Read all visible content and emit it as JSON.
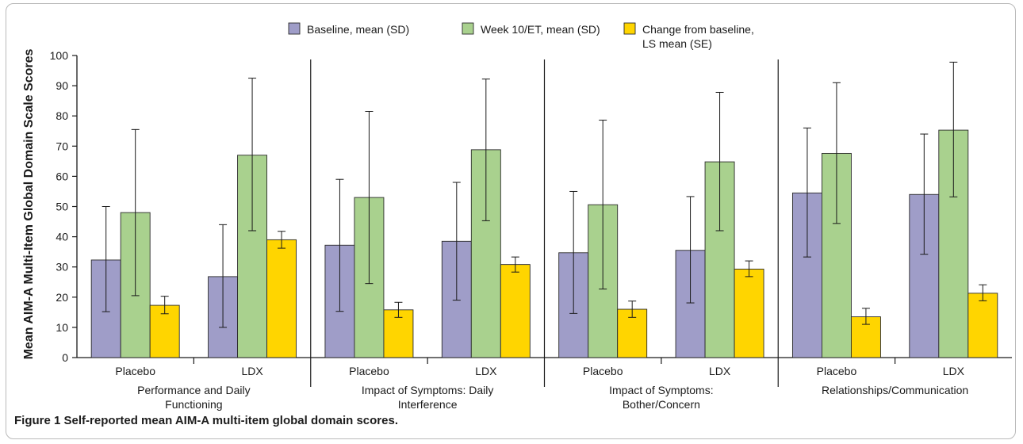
{
  "caption": {
    "label": "Figure 1",
    "text": "Self-reported mean AIM-A multi-item global domain scores."
  },
  "colors": {
    "baseline": "#9f9dc8",
    "week10": "#a9d18e",
    "change": "#ffd500",
    "axis": "#1a1a1a"
  },
  "chart_data": {
    "type": "bar",
    "title": "",
    "ylabel": "Mean AIM-A Multi-Item Global Domain Scale Scores",
    "xlabel": "",
    "ylim": [
      0,
      100
    ],
    "yticks": [
      0,
      10,
      20,
      30,
      40,
      50,
      60,
      70,
      80,
      90,
      100
    ],
    "grid": false,
    "legend_position": "top",
    "domains": [
      "Performance and Daily Functioning",
      "Impact of Symptoms: Daily Interference",
      "Impact of Symptoms: Bother/Concern",
      "Relationships/Communication"
    ],
    "domain_label_lines": [
      [
        "Performance and Daily",
        "Functioning"
      ],
      [
        "Impact of Symptoms: Daily",
        "Interference"
      ],
      [
        "Impact of Symptoms:",
        "Bother/Concern"
      ],
      [
        "Relationships/Communication"
      ]
    ],
    "categories": [
      "Placebo",
      "LDX",
      "Placebo",
      "LDX",
      "Placebo",
      "LDX",
      "Placebo",
      "LDX"
    ],
    "series": [
      {
        "name": "Baseline, mean (SD)",
        "legend_lines": [
          "Baseline, mean (SD)"
        ],
        "values": [
          32.3,
          26.8,
          37.2,
          38.5,
          34.7,
          35.5,
          54.5,
          54.0
        ],
        "err_low": [
          15.2,
          10.0,
          15.3,
          19.0,
          14.6,
          18.1,
          33.3,
          34.2
        ],
        "err_high": [
          50.0,
          44.0,
          59.0,
          58.0,
          55.0,
          53.3,
          76.0,
          74.0
        ]
      },
      {
        "name": "Week 10/ET, mean (SD)",
        "legend_lines": [
          "Week 10/ET, mean (SD)"
        ],
        "values": [
          48.0,
          67.0,
          53.0,
          68.8,
          50.6,
          64.8,
          67.6,
          75.3
        ],
        "err_low": [
          20.5,
          42.0,
          24.5,
          45.3,
          22.7,
          42.0,
          44.4,
          53.2
        ],
        "err_high": [
          75.5,
          92.5,
          81.5,
          92.2,
          78.6,
          87.8,
          91.0,
          97.8
        ]
      },
      {
        "name": "Change from baseline, LS mean (SE)",
        "legend_lines": [
          "Change from baseline,",
          "LS mean (SE)"
        ],
        "values": [
          17.3,
          39.0,
          15.8,
          30.8,
          16.0,
          29.3,
          13.5,
          21.3
        ],
        "err_low": [
          14.5,
          36.2,
          13.3,
          28.3,
          13.3,
          26.8,
          11.0,
          18.8
        ],
        "err_high": [
          20.3,
          41.8,
          18.3,
          33.3,
          18.7,
          32.0,
          16.3,
          24.1
        ]
      }
    ]
  }
}
